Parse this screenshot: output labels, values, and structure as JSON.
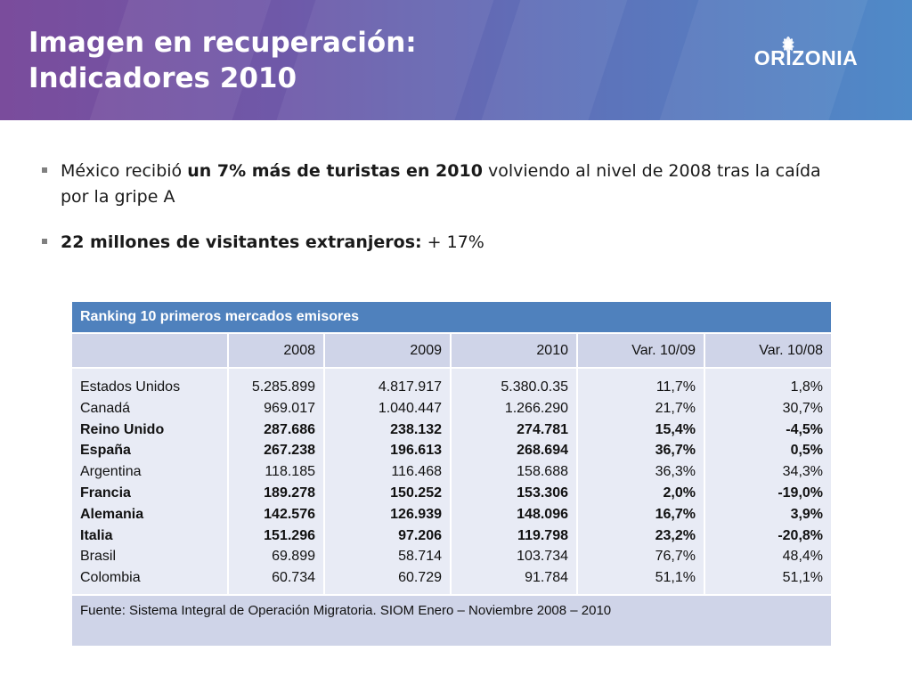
{
  "header": {
    "title_line1": "Imagen en recuperación:",
    "title_line2": "Indicadores 2010",
    "logo_text": "ORIZONIA",
    "gradient_colors": [
      "#7a4c9c",
      "#4f8ac8"
    ]
  },
  "bullets": [
    {
      "pre": "México recibió ",
      "bold": "un 7% más de turistas en 2010",
      "post": " volviendo al nivel de 2008 tras la caída por la gripe A"
    },
    {
      "pre": "",
      "bold": "22 millones de visitantes extranjeros:",
      "post": " + 17%"
    }
  ],
  "table": {
    "caption": "Ranking  10 primeros mercados emisores",
    "columns": [
      "",
      "2008",
      "2009",
      "2010",
      "Var. 10/09",
      "Var. 10/08"
    ],
    "rows": [
      {
        "country": "Estados Unidos",
        "bold": false,
        "values": [
          "5.285.899",
          "4.817.917",
          "5.380.0.35",
          "11,7%",
          "1,8%"
        ]
      },
      {
        "country": "Canadá",
        "bold": false,
        "values": [
          "969.017",
          "1.040.447",
          "1.266.290",
          "21,7%",
          "30,7%"
        ]
      },
      {
        "country": "Reino Unido",
        "bold": true,
        "values": [
          "287.686",
          "238.132",
          "274.781",
          "15,4%",
          "-4,5%"
        ]
      },
      {
        "country": "España",
        "bold": true,
        "values": [
          "267.238",
          "196.613",
          "268.694",
          "36,7%",
          "0,5%"
        ]
      },
      {
        "country": "Argentina",
        "bold": false,
        "values": [
          "118.185",
          "116.468",
          "158.688",
          "36,3%",
          "34,3%"
        ]
      },
      {
        "country": "Francia",
        "bold": true,
        "values": [
          "189.278",
          "150.252",
          "153.306",
          "2,0%",
          "-19,0%"
        ]
      },
      {
        "country": "Alemania",
        "bold": true,
        "values": [
          "142.576",
          "126.939",
          "148.096",
          "16,7%",
          "3,9%"
        ]
      },
      {
        "country": "Italia",
        "bold": true,
        "values": [
          "151.296",
          "97.206",
          "119.798",
          "23,2%",
          "-20,8%"
        ]
      },
      {
        "country": "Brasil",
        "bold": false,
        "values": [
          "69.899",
          "58.714",
          "103.734",
          "76,7%",
          "48,4%"
        ]
      },
      {
        "country": "Colombia",
        "bold": false,
        "values": [
          "60.734",
          "60.729",
          "91.784",
          "51,1%",
          "51,1%"
        ]
      }
    ],
    "source": "Fuente: Sistema Integral de Operación Migratoria. SIOM Enero – Noviembre 2008 – 2010",
    "colors": {
      "caption_bg": "#4f81bd",
      "header_bg": "#cfd4e8",
      "body_bg": "#e8ebf5"
    }
  }
}
